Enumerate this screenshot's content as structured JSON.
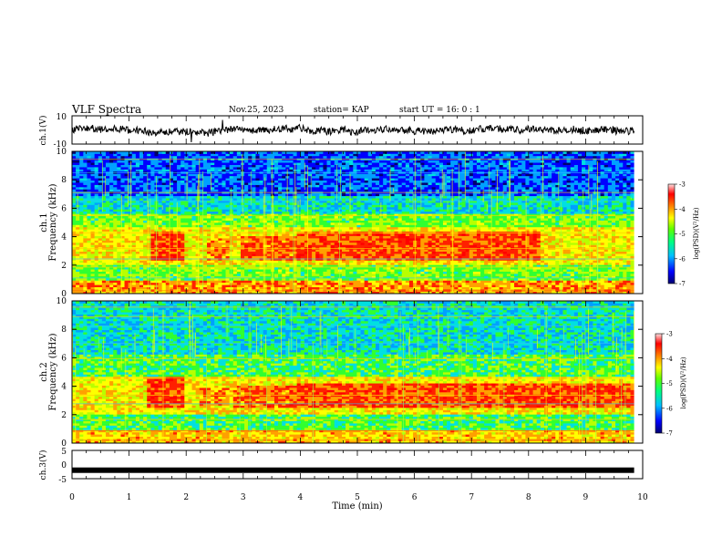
{
  "header": {
    "title": "VLF Spectra",
    "date": "Nov.25, 2023",
    "station": "station= KAP",
    "start": "start  UT =  16: 0  : 1"
  },
  "colors": {
    "background": "#ffffff",
    "frame": "#000000",
    "trace": "#000000",
    "colormap": [
      "#000070",
      "#0000ff",
      "#00a0ff",
      "#00e0e0",
      "#30ff30",
      "#b8ff00",
      "#ffff00",
      "#ffa000",
      "#ff2000",
      "#ff0000",
      "#ffd8d8"
    ]
  },
  "chart_data": [
    {
      "type": "line",
      "panel": "ch1-waveform",
      "ylabel": "ch.1(V)",
      "ylim": [
        -10,
        10
      ],
      "yticks": [
        "10",
        "-10"
      ],
      "xlim": [
        0,
        10
      ],
      "description": "broadband waveform oscillating around zero, mostly within about ±5 V",
      "series": [
        {
          "x": [
            0,
            10
          ],
          "y": [
            0,
            0
          ]
        }
      ]
    },
    {
      "type": "heatmap",
      "panel": "ch1-spectrogram",
      "ylabel": "ch.1\nFrequency (kHz)",
      "ylim": [
        0,
        10
      ],
      "yticks": [
        "0",
        "2",
        "4",
        "6",
        "8",
        "10"
      ],
      "xlim": [
        0,
        10
      ],
      "colorbar": {
        "label": "log(PSD)(V²/Hz)",
        "range": [
          -7,
          -3
        ],
        "ticks": [
          "-3",
          "-4",
          "-5",
          "-6",
          "-7"
        ]
      },
      "bands": [
        {
          "kHz": [
            0,
            0.9
          ],
          "level": -4.0,
          "note": "mixed low-frequency band"
        },
        {
          "kHz": [
            0.9,
            2.0
          ],
          "level": -5.0
        },
        {
          "kHz": [
            2.0,
            4.6
          ],
          "level": -4.4,
          "note": "chorus-like enhancement, strongest 1.4-1.9 min and 3.9-8.2 min"
        },
        {
          "kHz": [
            4.6,
            5.6
          ],
          "level": -5.0
        },
        {
          "kHz": [
            5.6,
            6.8
          ],
          "level": -5.6
        },
        {
          "kHz": [
            6.8,
            10
          ],
          "level": -6.2
        }
      ],
      "hot_patches": [
        {
          "t": [
            1.35,
            1.95
          ],
          "kHz": [
            2.2,
            4.3
          ],
          "level": -3.6
        },
        {
          "t": [
            2.3,
            2.7
          ],
          "kHz": [
            2.3,
            3.9
          ],
          "level": -4.0
        },
        {
          "t": [
            2.9,
            3.9
          ],
          "kHz": [
            2.3,
            4.0
          ],
          "level": -3.8
        },
        {
          "t": [
            3.9,
            8.2
          ],
          "kHz": [
            2.2,
            4.3
          ],
          "level": -3.7
        }
      ]
    },
    {
      "type": "heatmap",
      "panel": "ch2-spectrogram",
      "ylabel": "ch.2\nFrequency (kHz)",
      "ylim": [
        0,
        10
      ],
      "yticks": [
        "0",
        "2",
        "4",
        "6",
        "8",
        "10"
      ],
      "xlim": [
        0,
        10
      ],
      "colorbar": {
        "label": "log(PSD)(V²/Hz)",
        "range": [
          -7,
          -3
        ],
        "ticks": [
          "-3",
          "-4",
          "-5",
          "-6",
          "-7"
        ]
      },
      "bands": [
        {
          "kHz": [
            0,
            0.9
          ],
          "level": -4.2
        },
        {
          "kHz": [
            0.9,
            2.0
          ],
          "level": -5.2
        },
        {
          "kHz": [
            2.0,
            4.6
          ],
          "level": -4.4
        },
        {
          "kHz": [
            4.6,
            6.2
          ],
          "level": -5.2
        },
        {
          "kHz": [
            6.2,
            10
          ],
          "level": -5.6
        }
      ],
      "hot_patches": [
        {
          "t": [
            1.3,
            1.95
          ],
          "kHz": [
            2.4,
            4.6
          ],
          "level": -3.6
        },
        {
          "t": [
            2.2,
            2.7
          ],
          "kHz": [
            2.6,
            3.8
          ],
          "level": -4.0
        },
        {
          "t": [
            2.8,
            3.9
          ],
          "kHz": [
            2.5,
            4.0
          ],
          "level": -3.8
        },
        {
          "t": [
            3.9,
            9.8
          ],
          "kHz": [
            2.4,
            4.1
          ],
          "level": -3.7
        }
      ]
    },
    {
      "type": "line",
      "panel": "ch3-waveform",
      "ylabel": "ch.3(V)",
      "ylim": [
        -5,
        5
      ],
      "yticks": [
        "5",
        "0",
        "-5"
      ],
      "xlim": [
        0,
        10
      ],
      "xlabel": "Time (min)",
      "xticks": [
        "0",
        "1",
        "2",
        "3",
        "4",
        "5",
        "6",
        "7",
        "8",
        "9",
        "10"
      ],
      "series": [
        {
          "x": [
            0,
            9.85
          ],
          "y": [
            -2,
            -2
          ]
        }
      ]
    }
  ]
}
